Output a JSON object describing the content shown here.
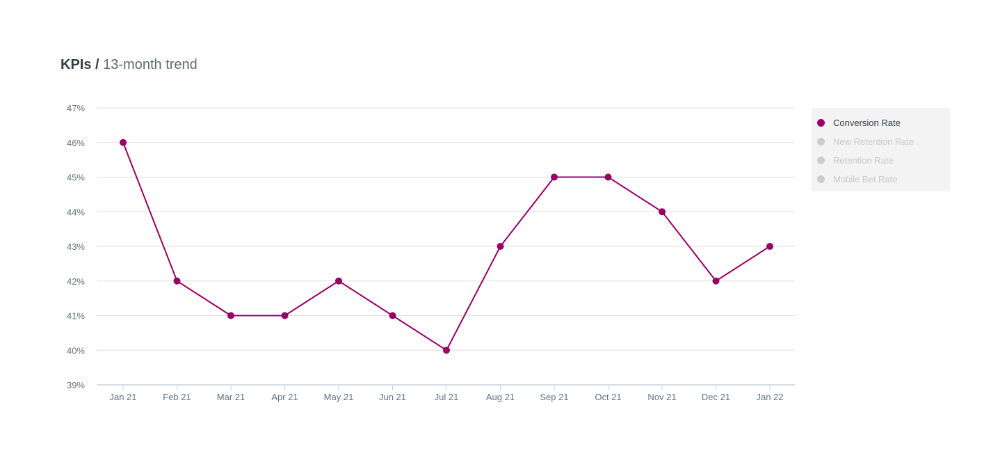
{
  "header": {
    "title_bold": "KPIs /",
    "title_rest": "13-month trend"
  },
  "colors": {
    "series": "#990066",
    "inactive": "#cccccc",
    "grid": "#dcdfe2",
    "axis": "#c8d3dc"
  },
  "legend": {
    "items": [
      {
        "label": "Conversion Rate",
        "active": true
      },
      {
        "label": "New Retention Rate",
        "active": false
      },
      {
        "label": "Retention Rate",
        "active": false
      },
      {
        "label": "Mobile Bet Rate",
        "active": false
      }
    ],
    "position": "right"
  },
  "chart_data": {
    "type": "line",
    "categories": [
      "Jan 21",
      "Feb 21",
      "Mar 21",
      "Apr 21",
      "May 21",
      "Jun 21",
      "Jul 21",
      "Aug 21",
      "Sep 21",
      "Oct 21",
      "Nov 21",
      "Dec 21",
      "Jan 22"
    ],
    "series": [
      {
        "name": "Conversion Rate",
        "values": [
          46,
          42,
          41,
          41,
          42,
          41,
          40,
          43,
          45,
          45,
          44,
          42,
          43
        ]
      }
    ],
    "ylim": [
      39,
      47
    ],
    "yticks": [
      39,
      40,
      41,
      42,
      43,
      44,
      45,
      46,
      47
    ],
    "ytick_suffix": "%",
    "grid": true
  }
}
